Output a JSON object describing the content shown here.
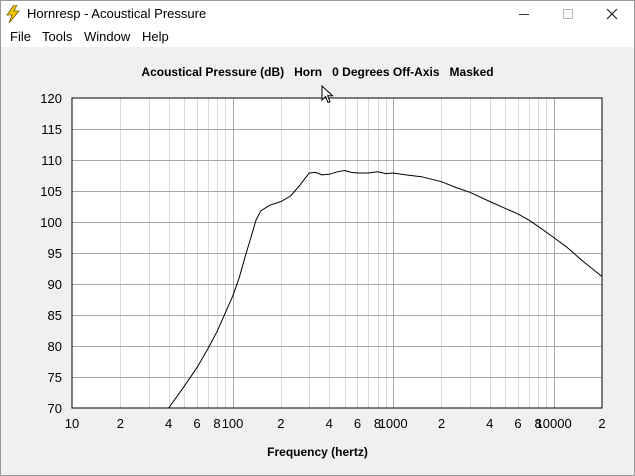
{
  "window": {
    "title": "Hornresp - Acoustical Pressure",
    "controls": {
      "minimize": "minimize-icon",
      "maximize": "maximize-icon",
      "close": "close-icon"
    }
  },
  "menu": [
    "File",
    "Tools",
    "Window",
    "Help"
  ],
  "chart_title": {
    "measure": "Acoustical Pressure (dB)",
    "device": "Horn",
    "angle": "0 Degrees Off-Axis",
    "mode": "Masked"
  },
  "chart_data": {
    "type": "line",
    "xlabel": "Frequency (hertz)",
    "ylabel": "",
    "xscale": "log",
    "xlim": [
      10,
      20000
    ],
    "ylim": [
      70,
      120
    ],
    "grid": true,
    "yticks": [
      70,
      75,
      80,
      85,
      90,
      95,
      100,
      105,
      110,
      115,
      120
    ],
    "xtick_labels": [
      {
        "x": 10,
        "label": "10"
      },
      {
        "x": 20,
        "label": "2"
      },
      {
        "x": 40,
        "label": "4"
      },
      {
        "x": 60,
        "label": "6"
      },
      {
        "x": 80,
        "label": "8"
      },
      {
        "x": 100,
        "label": "100"
      },
      {
        "x": 200,
        "label": "2"
      },
      {
        "x": 400,
        "label": "4"
      },
      {
        "x": 600,
        "label": "6"
      },
      {
        "x": 800,
        "label": "8"
      },
      {
        "x": 1000,
        "label": "1000"
      },
      {
        "x": 2000,
        "label": "2"
      },
      {
        "x": 4000,
        "label": "4"
      },
      {
        "x": 6000,
        "label": "6"
      },
      {
        "x": 8000,
        "label": "8"
      },
      {
        "x": 10000,
        "label": "10000"
      },
      {
        "x": 20000,
        "label": "2"
      }
    ],
    "series": [
      {
        "color": "#000000",
        "x": [
          40,
          50,
          60,
          70,
          80,
          90,
          100,
          110,
          120,
          130,
          140,
          150,
          170,
          200,
          230,
          260,
          300,
          330,
          360,
          400,
          450,
          500,
          550,
          600,
          700,
          800,
          900,
          1000,
          1200,
          1500,
          2000,
          2500,
          3000,
          4000,
          5000,
          6000,
          7000,
          8000,
          10000,
          12000,
          15000,
          20000
        ],
        "y": [
          70.0,
          73.5,
          76.5,
          79.5,
          82.3,
          85.3,
          88.0,
          91.0,
          94.5,
          97.5,
          100.3,
          101.8,
          102.7,
          103.3,
          104.2,
          105.8,
          107.9,
          108.0,
          107.6,
          107.7,
          108.1,
          108.3,
          108.0,
          107.9,
          107.9,
          108.1,
          107.8,
          107.9,
          107.6,
          107.3,
          106.5,
          105.5,
          104.8,
          103.3,
          102.2,
          101.3,
          100.3,
          99.3,
          97.5,
          96.0,
          93.8,
          91.2
        ]
      }
    ]
  }
}
